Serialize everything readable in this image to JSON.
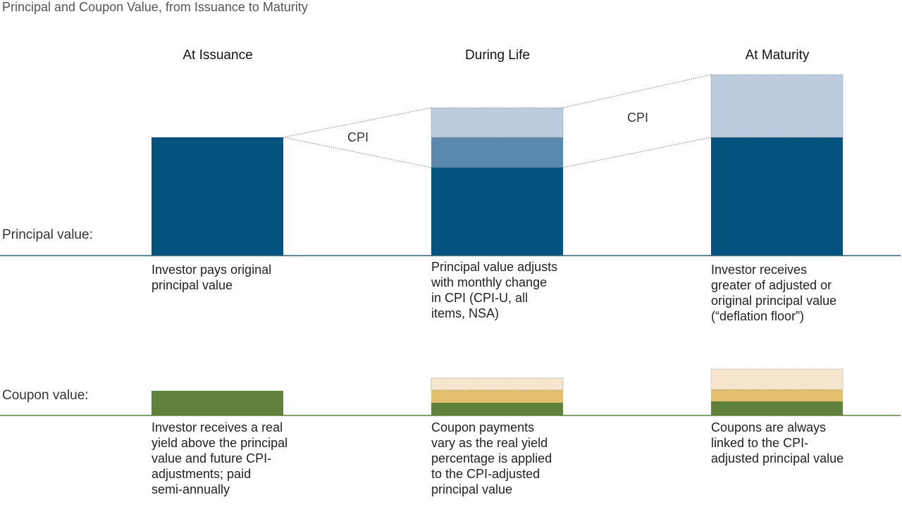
{
  "title": "Principal and Coupon Value, from Issuance to Maturity",
  "columns": [
    {
      "heading": "At Issuance",
      "principal_desc": "Investor pays original\nprincipal value",
      "coupon_desc": "Investor receives a real\nyield above the principal\nvalue and  future CPI-\nadjustments; paid\nsemi-annually"
    },
    {
      "heading": "During Life",
      "principal_desc": "Principal value adjusts\nwith monthly change\nin CPI (CPI-U, all\nitems, NSA)",
      "coupon_desc": "Coupon payments\nvary as the real yield\npercentage is applied\nto the CPI-adjusted\nprincipal value"
    },
    {
      "heading": "At Maturity",
      "principal_desc": "Investor receives\ngreater of adjusted or\noriginal principal value\n(“deflation floor”)",
      "coupon_desc": "Coupons are always\nlinked to the CPI-\nadjusted principal value"
    }
  ],
  "row_labels": {
    "principal": "Principal value:",
    "coupon": "Coupon value:"
  },
  "cpi_labels": [
    "CPI",
    "CPI"
  ],
  "colors": {
    "principal_base": "#04527e",
    "principal_mid": "#5b88ad",
    "principal_light": "#bccbdd",
    "coupon_base": "#5e823b",
    "coupon_mid": "#e4bf6e",
    "coupon_light": "#f5e6cd",
    "axis_principal": "#2f5f78",
    "axis_coupon": "#5e823b"
  }
}
